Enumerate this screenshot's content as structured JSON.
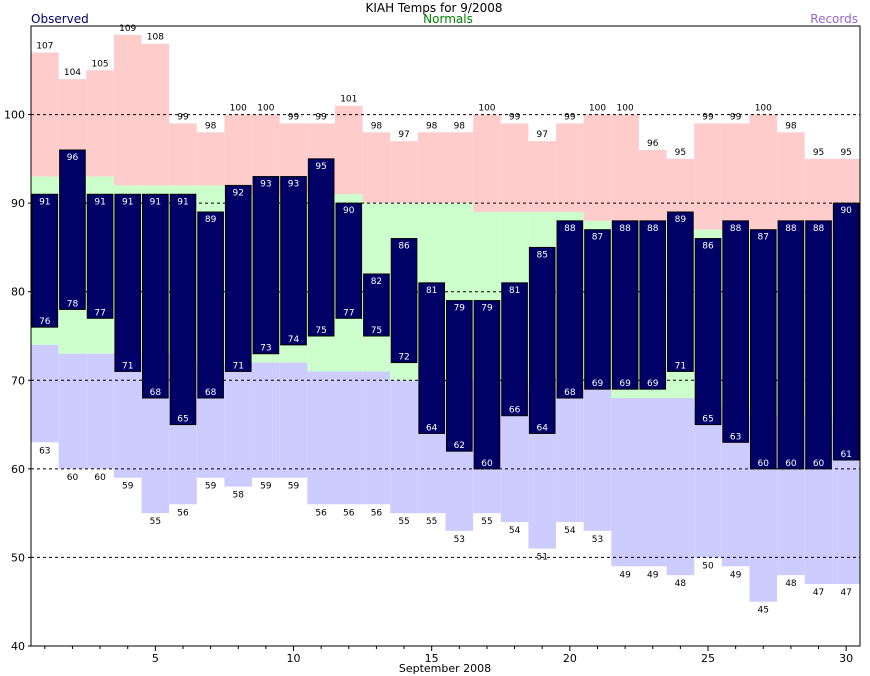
{
  "chart_data": {
    "type": "bar",
    "title": "KIAH Temps for 9/2008",
    "xlabel": "September 2008",
    "ylabel": "",
    "legend": {
      "observed": "Observed",
      "normals": "Normals",
      "records": "Records",
      "placement": "top"
    },
    "colors": {
      "observed": "#000066",
      "normals": "#ccffcc",
      "record_high": "#ffcccc",
      "record_low": "#ccccff",
      "normals_label": "#008000",
      "records_label": "#9966cc",
      "grid": "#000000"
    },
    "ylim": [
      40,
      110
    ],
    "xlim": [
      0.5,
      30.5
    ],
    "x_ticks": [
      5,
      10,
      15,
      20,
      25,
      30
    ],
    "y_ticks": [
      40,
      50,
      60,
      70,
      80,
      90,
      100
    ],
    "grid_lines": [
      50,
      60,
      70,
      80,
      90,
      100
    ],
    "days": [
      1,
      2,
      3,
      4,
      5,
      6,
      7,
      8,
      9,
      10,
      11,
      12,
      13,
      14,
      15,
      16,
      17,
      18,
      19,
      20,
      21,
      22,
      23,
      24,
      25,
      26,
      27,
      28,
      29,
      30
    ],
    "series": [
      {
        "name": "Observed High",
        "values": [
          91,
          96,
          91,
          91,
          91,
          91,
          89,
          92,
          93,
          93,
          95,
          90,
          82,
          86,
          81,
          79,
          79,
          81,
          85,
          88,
          87,
          88,
          88,
          89,
          86,
          88,
          87,
          88,
          88,
          90
        ]
      },
      {
        "name": "Observed Low",
        "values": [
          76,
          78,
          77,
          71,
          68,
          65,
          68,
          71,
          73,
          74,
          75,
          77,
          75,
          72,
          64,
          62,
          60,
          66,
          64,
          68,
          69,
          69,
          69,
          71,
          65,
          63,
          60,
          60,
          60,
          61
        ]
      },
      {
        "name": "Record High",
        "values": [
          107,
          104,
          105,
          109,
          108,
          99,
          98,
          100,
          100,
          99,
          99,
          101,
          98,
          97,
          98,
          98,
          100,
          99,
          97,
          99,
          100,
          100,
          96,
          95,
          99,
          99,
          100,
          98,
          95,
          95
        ]
      },
      {
        "name": "Record Low",
        "values": [
          63,
          60,
          60,
          59,
          55,
          56,
          59,
          58,
          59,
          59,
          56,
          56,
          56,
          55,
          55,
          53,
          55,
          54,
          51,
          54,
          53,
          49,
          49,
          48,
          50,
          49,
          45,
          48,
          47,
          47
        ]
      },
      {
        "name": "Normal High",
        "values": [
          93,
          93,
          93,
          92,
          92,
          92,
          92,
          91,
          91,
          91,
          91,
          91,
          90,
          90,
          90,
          90,
          89,
          89,
          89,
          89,
          88,
          88,
          88,
          88,
          87,
          87,
          87,
          87,
          86,
          86
        ]
      },
      {
        "name": "Normal Low",
        "values": [
          74,
          73,
          73,
          73,
          73,
          73,
          72,
          72,
          72,
          72,
          71,
          71,
          71,
          70,
          70,
          70,
          70,
          70,
          69,
          69,
          69,
          68,
          68,
          68,
          67,
          67,
          66,
          66,
          66,
          65
        ]
      }
    ]
  }
}
